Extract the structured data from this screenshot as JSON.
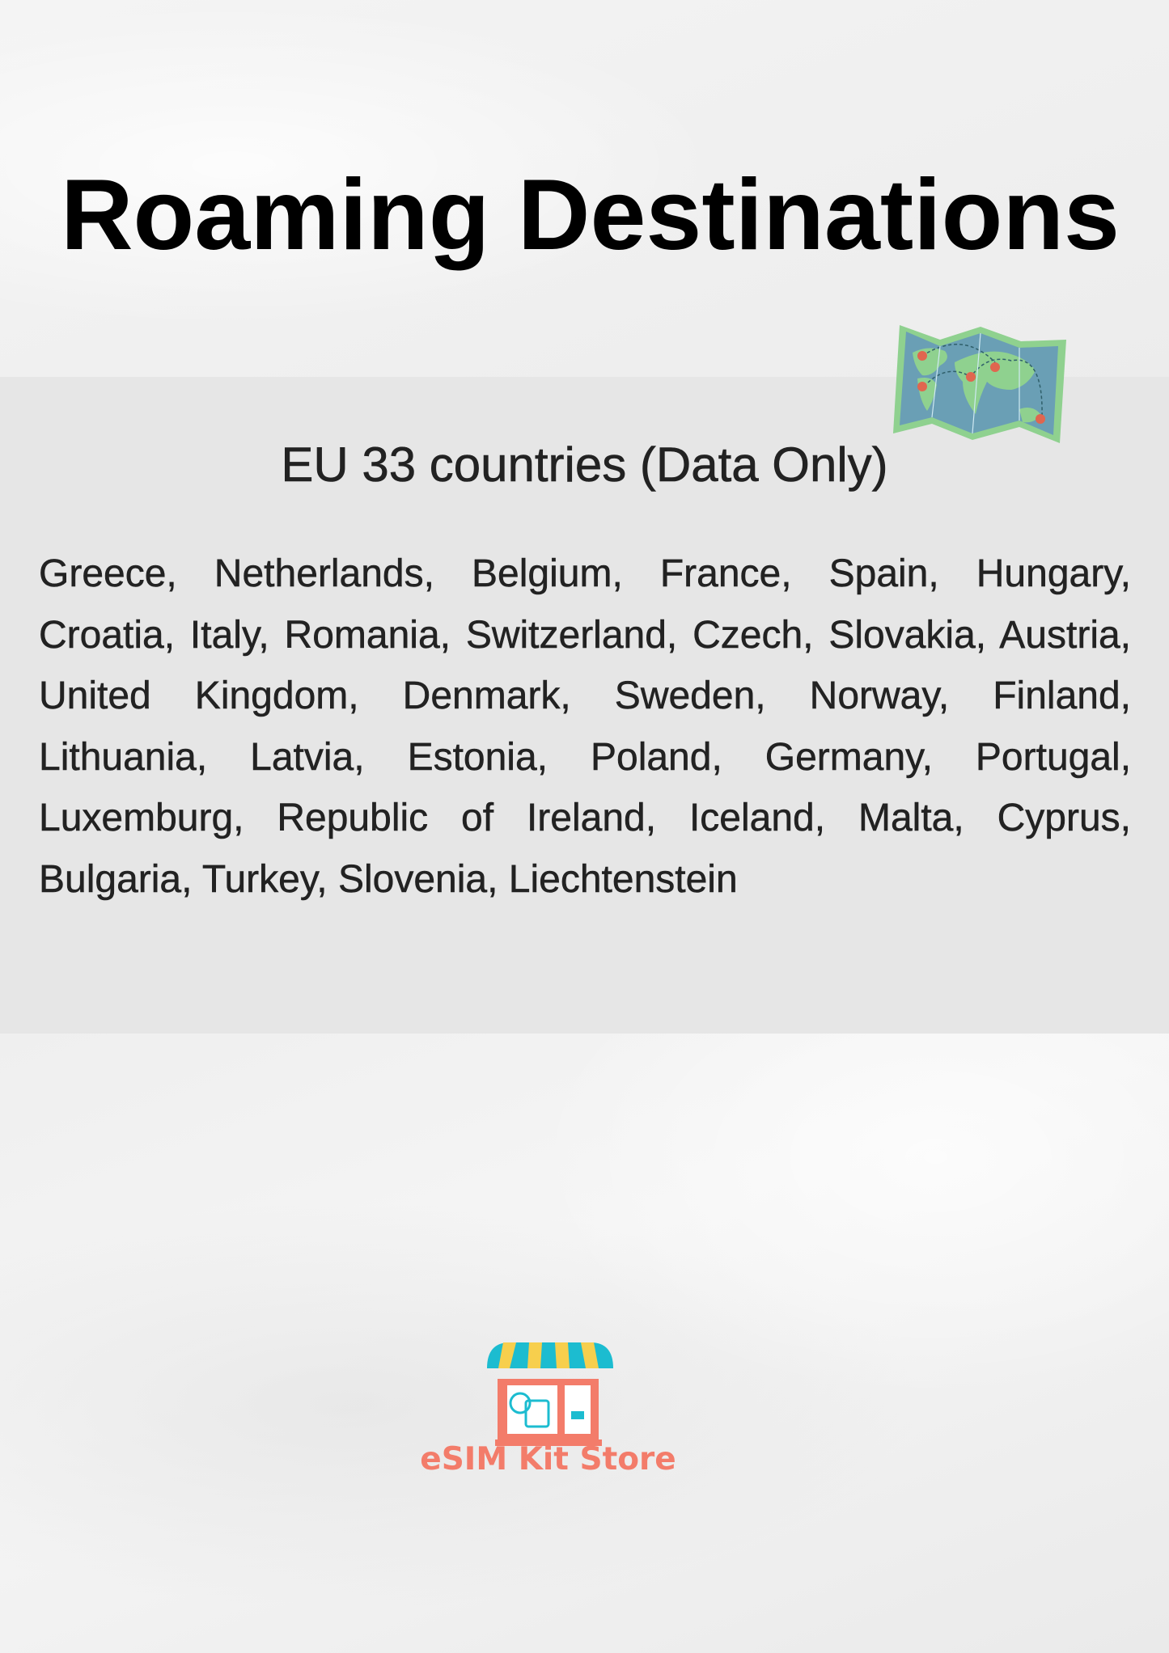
{
  "title": "Roaming Destinations",
  "subtitle": "EU 33 countries (Data Only)",
  "countries": [
    "Greece",
    "Netherlands",
    "Belgium",
    "France",
    "Spain",
    "Hungary",
    "Croatia",
    "Italy",
    "Romania",
    "Switzerland",
    "Czech",
    "Slovakia",
    "Austria",
    "United Kingdom",
    "Denmark",
    "Sweden",
    "Norway",
    "Finland",
    "Lithuania",
    "Latvia",
    "Estonia",
    "Poland",
    "Germany",
    "Portugal",
    "Luxemburg",
    "Republic of Ireland",
    "Iceland",
    "Malta",
    "Cyprus",
    "Bulgaria",
    "Turkey",
    "Slovenia",
    "Liechtenstein"
  ],
  "icons": {
    "map": "world-map-icon",
    "logo": "storefront-icon"
  },
  "logo": {
    "text": "eSIM Kit Store",
    "color": "#f37c6a"
  },
  "colors": {
    "band": "#e6e6e6",
    "map_border": "#8fd18f",
    "map_sea": "#6a9fb5",
    "pin": "#e0664f",
    "awning_teal": "#1cbcd0",
    "awning_yellow": "#f7cf4d"
  }
}
